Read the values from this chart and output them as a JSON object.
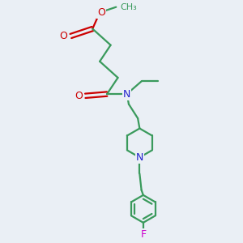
{
  "background_color": "#eaeff5",
  "bond_color": "#3a9a5c",
  "nitrogen_color": "#2020cc",
  "oxygen_color": "#cc0000",
  "fluorine_color": "#cc00cc",
  "bond_width": 1.6,
  "figsize": [
    3.0,
    3.0
  ],
  "dpi": 100,
  "xlim": [
    -1.5,
    2.5
  ],
  "ylim": [
    -3.5,
    3.0
  ]
}
